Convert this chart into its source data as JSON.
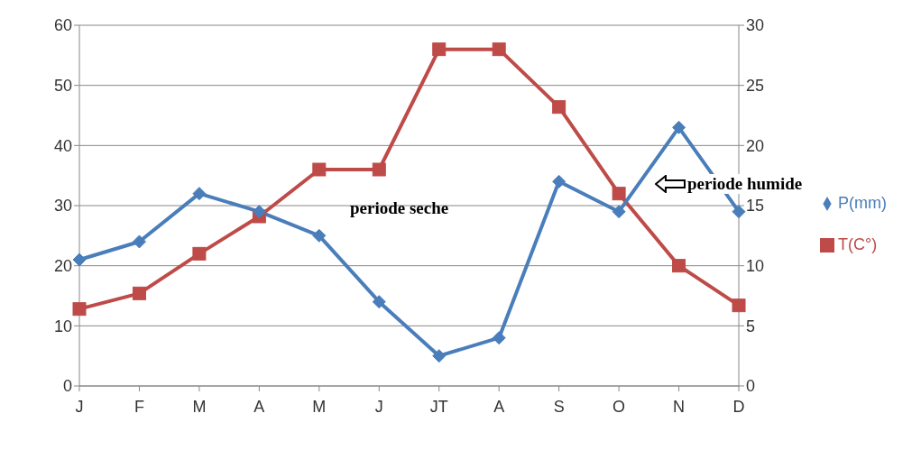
{
  "chart_data": {
    "type": "line",
    "categories": [
      "J",
      "F",
      "M",
      "A",
      "M",
      "J",
      "JT",
      "A",
      "S",
      "O",
      "N",
      "D"
    ],
    "series": [
      {
        "name": "P(mm)",
        "color": "#4a7ebb",
        "marker": "diamond",
        "values": [
          21,
          24,
          32,
          29,
          25,
          14,
          5,
          8,
          34,
          29,
          43,
          29
        ]
      },
      {
        "name": "T(C°)",
        "color": "#be4b48",
        "marker": "square",
        "axis": "y2",
        "values": [
          6.4,
          7.7,
          11,
          14.1,
          18,
          18,
          28,
          28,
          23.2,
          16,
          10,
          6.7
        ]
      }
    ],
    "ylim": [
      0,
      60
    ],
    "yticks": [
      0,
      10,
      20,
      30,
      40,
      50,
      60
    ],
    "y2lim": [
      0,
      30
    ],
    "y2ticks": [
      0,
      5,
      10,
      15,
      20,
      25,
      30
    ],
    "grid": "y",
    "legend": "right",
    "line_style": "solid",
    "annotations": [
      "periode seche",
      "periode humide"
    ]
  }
}
